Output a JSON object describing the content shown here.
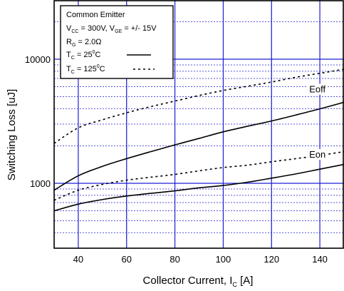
{
  "chart_data": {
    "type": "line",
    "xlabel_main": "Collector Current, I",
    "xlabel_sub": "C",
    "xlabel_unit": " [A]",
    "ylabel": "Switching Loss [uJ]",
    "xlim": [
      30,
      150
    ],
    "ylim": [
      300,
      30000
    ],
    "yscale": "log",
    "grid": true,
    "x_ticks": [
      40,
      60,
      80,
      100,
      120,
      140
    ],
    "x_tick_labels": [
      "40",
      "60",
      "80",
      "100",
      "120",
      "140"
    ],
    "y_ticks": [
      1000,
      10000
    ],
    "y_tick_labels": [
      "1000",
      "10000"
    ],
    "x": [
      30,
      40,
      50,
      60,
      70,
      80,
      90,
      100,
      110,
      120,
      130,
      140,
      150
    ],
    "series": [
      {
        "label": "Eoff",
        "temperature": "25C",
        "style": "solid",
        "values": [
          880,
          1150,
          1370,
          1580,
          1800,
          2040,
          2300,
          2600,
          2880,
          3180,
          3550,
          3980,
          4500
        ]
      },
      {
        "label": "Eoff",
        "temperature": "125C",
        "style": "dotted",
        "values": [
          2100,
          2800,
          3250,
          3700,
          4150,
          4600,
          5100,
          5600,
          6050,
          6550,
          7150,
          7700,
          8300
        ]
      },
      {
        "label": "Eon",
        "temperature": "25C",
        "style": "solid",
        "values": [
          600,
          680,
          740,
          790,
          830,
          870,
          920,
          960,
          1020,
          1100,
          1190,
          1300,
          1420
        ]
      },
      {
        "label": "Eon",
        "temperature": "125C",
        "style": "dotted",
        "values": [
          730,
          880,
          980,
          1060,
          1120,
          1180,
          1260,
          1340,
          1400,
          1490,
          1580,
          1680,
          1800
        ]
      }
    ],
    "series_labels": [
      {
        "text": "Eoff",
        "x": 139,
        "y": 5400
      },
      {
        "text": "Eon",
        "x": 139,
        "y": 1610
      }
    ],
    "legend": {
      "placement": "top-left",
      "line1": "Common Emitter",
      "line2": {
        "v": "V",
        "cc": "CC",
        "a": " = 300V, V",
        "ge": "GE",
        "b": " = +/- 15V"
      },
      "line3": {
        "r": "R",
        "g": "G",
        "b": " = 2.0Ω"
      },
      "line4": {
        "t": "T",
        "c": "C",
        "b": " = 25",
        "deg": "0",
        "e": "C"
      },
      "line5": {
        "t": "T",
        "c": "C",
        "b": " = 125",
        "deg": "0",
        "e": "C"
      }
    },
    "colors": {
      "grid": "#1f1fd6",
      "curve": "#000000",
      "frame": "#000000"
    }
  }
}
